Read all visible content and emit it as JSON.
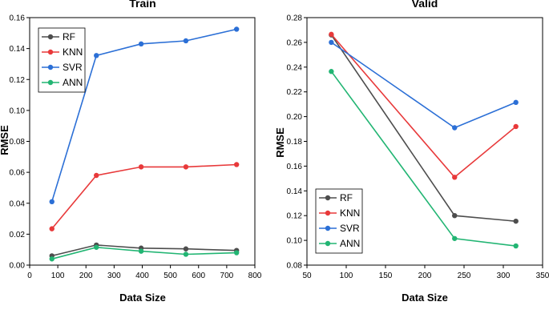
{
  "chart_data": [
    {
      "type": "line",
      "title": "Train",
      "xlabel": "Data Size",
      "ylabel": "RMSE",
      "xlim": [
        0,
        800
      ],
      "ylim": [
        0.0,
        0.16
      ],
      "xticks": [
        0,
        100,
        200,
        300,
        400,
        500,
        600,
        700,
        800
      ],
      "yticks": [
        0.0,
        0.02,
        0.04,
        0.06,
        0.08,
        0.1,
        0.12,
        0.14,
        0.16
      ],
      "xtick_labels": [
        "0",
        "100",
        "200",
        "300",
        "400",
        "500",
        "600",
        "700",
        "800"
      ],
      "ytick_labels": [
        "0.00",
        "0.02",
        "0.04",
        "0.06",
        "0.08",
        "0.10",
        "0.12",
        "0.14",
        "0.16"
      ],
      "legend_position": "top-left",
      "x": [
        79,
        237,
        396,
        555,
        735
      ],
      "series": [
        {
          "name": "RF",
          "color": "#4d4d4d",
          "values": [
            0.006,
            0.013,
            0.011,
            0.0105,
            0.0095
          ]
        },
        {
          "name": "KNN",
          "color": "#e8393a",
          "values": [
            0.0235,
            0.058,
            0.0635,
            0.0635,
            0.065
          ]
        },
        {
          "name": "SVR",
          "color": "#2b6fd6",
          "values": [
            0.041,
            0.1355,
            0.143,
            0.145,
            0.1525
          ]
        },
        {
          "name": "ANN",
          "color": "#22b573",
          "values": [
            0.004,
            0.0115,
            0.009,
            0.007,
            0.008
          ]
        }
      ]
    },
    {
      "type": "line",
      "title": "Valid",
      "xlabel": "Data Size",
      "ylabel": "RMSE",
      "xlim": [
        50,
        350
      ],
      "ylim": [
        0.08,
        0.28
      ],
      "xticks": [
        50,
        100,
        150,
        200,
        250,
        300,
        350
      ],
      "yticks": [
        0.08,
        0.1,
        0.12,
        0.14,
        0.16,
        0.18,
        0.2,
        0.22,
        0.24,
        0.26,
        0.28
      ],
      "xtick_labels": [
        "50",
        "100",
        "150",
        "200",
        "250",
        "300",
        "350"
      ],
      "ytick_labels": [
        "0.08",
        "0.10",
        "0.12",
        "0.14",
        "0.16",
        "0.18",
        "0.20",
        "0.22",
        "0.24",
        "0.26",
        "0.28"
      ],
      "legend_position": "bottom-left",
      "x": [
        81,
        238,
        316
      ],
      "series": [
        {
          "name": "RF",
          "color": "#4d4d4d",
          "values": [
            0.266,
            0.12,
            0.1155
          ]
        },
        {
          "name": "KNN",
          "color": "#e8393a",
          "values": [
            0.2665,
            0.151,
            0.192
          ]
        },
        {
          "name": "SVR",
          "color": "#2b6fd6",
          "values": [
            0.26,
            0.191,
            0.2115
          ]
        },
        {
          "name": "ANN",
          "color": "#22b573",
          "values": [
            0.2365,
            0.1015,
            0.0955
          ]
        }
      ]
    }
  ]
}
